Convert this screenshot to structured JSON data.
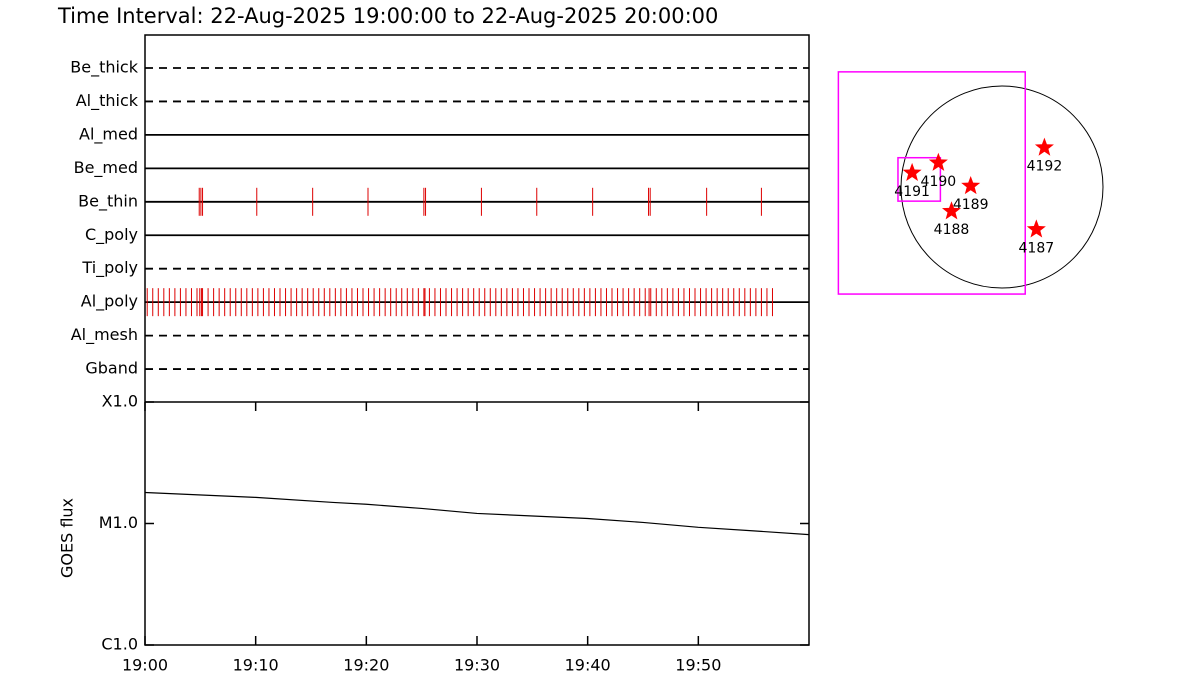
{
  "title": "Time Interval: 22-Aug-2025 19:00:00 to 22-Aug-2025 20:00:00",
  "chart_data": [
    {
      "type": "timeline",
      "xlim": [
        0,
        60
      ],
      "color": "#dd0000",
      "rows": [
        {
          "name": "Be_thick",
          "style": "dashed",
          "times": []
        },
        {
          "name": "Al_thick",
          "style": "dashed",
          "times": []
        },
        {
          "name": "Al_med",
          "style": "solid",
          "times": []
        },
        {
          "name": "Be_med",
          "style": "solid",
          "times": []
        },
        {
          "name": "Be_thin",
          "style": "solid",
          "times": [
            4.9,
            5.05,
            5.2,
            10.1,
            15.15,
            20.15,
            25.2,
            25.35,
            30.4,
            35.4,
            40.45,
            45.5,
            45.65,
            50.75,
            55.7
          ]
        },
        {
          "name": "C_poly",
          "style": "solid",
          "times": []
        },
        {
          "name": "Ti_poly",
          "style": "dashed",
          "times": []
        },
        {
          "name": "Al_poly",
          "style": "solid",
          "times": [
            0.2,
            0.7,
            1.2,
            1.7,
            2.2,
            2.7,
            3.2,
            3.7,
            4.2,
            4.7,
            4.95,
            5.1,
            5.2,
            5.7,
            6.2,
            6.7,
            7.2,
            7.7,
            8.2,
            8.7,
            9.2,
            9.7,
            10.2,
            10.7,
            11.2,
            11.7,
            12.2,
            12.7,
            13.2,
            13.7,
            14.2,
            14.7,
            15.2,
            15.7,
            16.2,
            16.7,
            17.2,
            17.7,
            18.2,
            18.7,
            19.2,
            19.7,
            20.2,
            20.7,
            21.2,
            21.7,
            22.2,
            22.7,
            23.2,
            23.7,
            24.2,
            24.7,
            25.2,
            25.3,
            25.7,
            26.2,
            26.7,
            27.2,
            27.7,
            28.2,
            28.7,
            29.2,
            29.7,
            30.2,
            30.7,
            31.2,
            31.7,
            32.2,
            32.7,
            33.2,
            33.7,
            34.2,
            34.7,
            35.2,
            35.7,
            36.2,
            36.7,
            37.2,
            37.7,
            38.2,
            38.7,
            39.2,
            39.7,
            40.2,
            40.7,
            41.2,
            41.7,
            42.2,
            42.7,
            43.2,
            43.7,
            44.2,
            44.7,
            45.2,
            45.55,
            45.7,
            46.2,
            46.7,
            47.2,
            47.7,
            48.2,
            48.7,
            49.2,
            49.7,
            50.2,
            50.7,
            51.2,
            51.7,
            52.2,
            52.7,
            53.2,
            53.7,
            54.2,
            54.7,
            55.2,
            55.7,
            56.2,
            56.7
          ]
        },
        {
          "name": "Al_mesh",
          "style": "dashed",
          "times": []
        },
        {
          "name": "Gband",
          "style": "dashed",
          "times": []
        }
      ]
    },
    {
      "type": "line",
      "ylabel": "GOES flux",
      "color": "#000000",
      "log_y": true,
      "x": [
        0,
        10,
        17,
        20,
        25,
        30,
        40,
        45,
        50,
        55,
        60
      ],
      "values": [
        1.8e-05,
        1.64e-05,
        1.49e-05,
        1.44e-05,
        1.33e-05,
        1.21e-05,
        1.1e-05,
        1.02e-05,
        9.3e-06,
        8.7e-06,
        8.1e-06
      ],
      "xlim": [
        0,
        60
      ],
      "ylim": [
        1e-06,
        0.0001
      ],
      "xticks": [
        {
          "value": 0,
          "label": "19:00"
        },
        {
          "value": 10,
          "label": "19:10"
        },
        {
          "value": 20,
          "label": "19:20"
        },
        {
          "value": 30,
          "label": "19:30"
        },
        {
          "value": 40,
          "label": "19:40"
        },
        {
          "value": 50,
          "label": "19:50"
        }
      ],
      "yticks": [
        {
          "value": 1e-06,
          "label": "C1.0"
        },
        {
          "value": 1e-05,
          "label": "M1.0"
        },
        {
          "value": 0.0001,
          "label": "X1.0"
        }
      ]
    },
    {
      "type": "map",
      "color": "#ff0000",
      "fov_color": "#ff00ff",
      "xlim": [
        -1,
        1
      ],
      "ylim": [
        -1,
        1
      ],
      "regions": [
        {
          "label": "4191",
          "x": -0.89,
          "y": 0.14
        },
        {
          "label": "4190",
          "x": -0.63,
          "y": 0.24
        },
        {
          "label": "4189",
          "x": -0.31,
          "y": 0.01
        },
        {
          "label": "4188",
          "x": -0.5,
          "y": -0.24
        },
        {
          "label": "4192",
          "x": 0.42,
          "y": 0.39
        },
        {
          "label": "4187",
          "x": 0.34,
          "y": -0.42
        }
      ],
      "fov": [
        {
          "x": [
            -1.62,
            0.23
          ],
          "y": [
            -1.06,
            1.14
          ]
        },
        {
          "x": [
            -1.03,
            -0.61
          ],
          "y": [
            -0.14,
            0.29
          ]
        }
      ]
    }
  ]
}
